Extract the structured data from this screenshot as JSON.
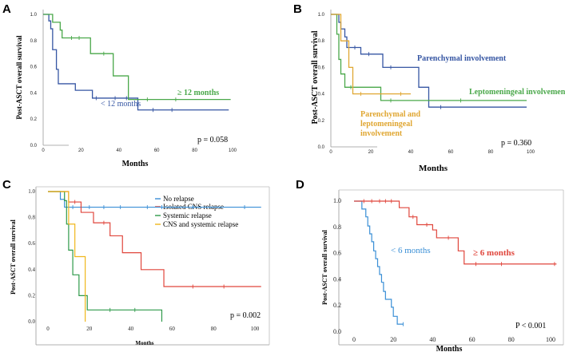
{
  "chart_data": [
    {
      "panel": "A",
      "type": "line",
      "title": "",
      "xlabel": "Months",
      "ylabel": "Post-ASCT overall survival",
      "xlim": [
        0,
        100
      ],
      "ylim": [
        0,
        1.0
      ],
      "xticks": [
        "0",
        "20",
        "40",
        "60",
        "80",
        "100"
      ],
      "yticks": [
        "0.0",
        "0.2",
        "0.4",
        "0.6",
        "0.8",
        "1.0"
      ],
      "pvalue": "p = 0.058",
      "series": [
        {
          "name": "< 12 months",
          "label": "< 12 months",
          "color": "#3656a3",
          "steps": [
            [
              0,
              1.0
            ],
            [
              3,
              0.95
            ],
            [
              4,
              0.89
            ],
            [
              5,
              0.73
            ],
            [
              7,
              0.58
            ],
            [
              8,
              0.47
            ],
            [
              17,
              0.42
            ],
            [
              26,
              0.36
            ],
            [
              50,
              0.27
            ],
            [
              98,
              0.27
            ]
          ],
          "censors": [
            [
              28,
              0.36
            ],
            [
              38,
              0.36
            ],
            [
              44,
              0.36
            ],
            [
              58,
              0.27
            ],
            [
              68,
              0.27
            ]
          ]
        },
        {
          "name": "≥ 12 months",
          "label": "≥ 12 months",
          "color": "#4aa84a",
          "steps": [
            [
              0,
              1.0
            ],
            [
              5,
              0.94
            ],
            [
              9,
              0.88
            ],
            [
              10,
              0.82
            ],
            [
              25,
              0.7
            ],
            [
              37,
              0.53
            ],
            [
              45,
              0.35
            ],
            [
              99,
              0.35
            ]
          ],
          "censors": [
            [
              15,
              0.82
            ],
            [
              19,
              0.82
            ],
            [
              32,
              0.7
            ],
            [
              55,
              0.35
            ],
            [
              70,
              0.35
            ]
          ]
        }
      ]
    },
    {
      "panel": "B",
      "type": "line",
      "title": "",
      "xlabel": "Months",
      "ylabel": "Post-ASCT overall survival",
      "xlim": [
        0,
        100
      ],
      "ylim": [
        0,
        1.0
      ],
      "xticks": [
        "0",
        "20",
        "40",
        "60",
        "80",
        "100"
      ],
      "yticks": [
        "0.0",
        "0.2",
        "0.4",
        "0.6",
        "0.8",
        "1.0"
      ],
      "pvalue": "p = 0.360",
      "series": [
        {
          "name": "Parenchymal involvement",
          "label": "Parenchymal involvement",
          "color": "#3656a3",
          "steps": [
            [
              0,
              1.0
            ],
            [
              4,
              0.94
            ],
            [
              5,
              0.89
            ],
            [
              7,
              0.83
            ],
            [
              8,
              0.75
            ],
            [
              15,
              0.7
            ],
            [
              26,
              0.6
            ],
            [
              44,
              0.45
            ],
            [
              49,
              0.3
            ],
            [
              98,
              0.3
            ]
          ],
          "censors": [
            [
              12,
              0.75
            ],
            [
              19,
              0.7
            ],
            [
              30,
              0.6
            ],
            [
              55,
              0.3
            ]
          ]
        },
        {
          "name": "Leptomeningeal involvement",
          "label": "Leptomeningeal involvement",
          "color": "#4aa84a",
          "steps": [
            [
              0,
              1.0
            ],
            [
              3,
              0.85
            ],
            [
              4,
              0.66
            ],
            [
              5,
              0.55
            ],
            [
              7,
              0.45
            ],
            [
              25,
              0.35
            ],
            [
              98,
              0.35
            ]
          ],
          "censors": [
            [
              10,
              0.45
            ],
            [
              30,
              0.35
            ],
            [
              65,
              0.35
            ]
          ]
        },
        {
          "name": "Parenchymal and leptomeningeal involvement",
          "label1": "Parenchymal and",
          "label2": "leptomeningeal",
          "label3": "involvement",
          "color": "#e0a733",
          "steps": [
            [
              0,
              1.0
            ],
            [
              5,
              0.8
            ],
            [
              9,
              0.6
            ],
            [
              11,
              0.4
            ],
            [
              40,
              0.4
            ]
          ],
          "censors": [
            [
              15,
              0.4
            ],
            [
              35,
              0.4
            ]
          ]
        }
      ]
    },
    {
      "panel": "C",
      "type": "line",
      "title": "",
      "xlabel": "Months",
      "ylabel": "Post-ASCT overall survival",
      "xlim": [
        0,
        100
      ],
      "ylim": [
        0,
        1.0
      ],
      "xticks": [
        "0",
        "20",
        "40",
        "60",
        "80",
        "100"
      ],
      "yticks": [
        "0.0",
        "0.2",
        "0.4",
        "0.6",
        "0.8",
        "1.0"
      ],
      "pvalue": "p = 0.002",
      "legend": [
        "No relapse",
        "Isolated CNS relapse",
        "Systemic relapse",
        "CNS and systemic relapse"
      ],
      "series": [
        {
          "name": "No relapse",
          "color": "#3a8fd6",
          "steps": [
            [
              0,
              1.0
            ],
            [
              6,
              0.94
            ],
            [
              8,
              0.88
            ],
            [
              103,
              0.88
            ]
          ],
          "censors": [
            [
              12,
              0.88
            ],
            [
              16,
              0.88
            ],
            [
              20,
              0.88
            ],
            [
              27,
              0.88
            ],
            [
              35,
              0.88
            ],
            [
              48,
              0.88
            ],
            [
              55,
              0.88
            ],
            [
              70,
              0.88
            ],
            [
              95,
              0.88
            ]
          ]
        },
        {
          "name": "Isolated CNS relapse",
          "color": "#e0463c",
          "steps": [
            [
              0,
              1.0
            ],
            [
              10,
              0.92
            ],
            [
              16,
              0.84
            ],
            [
              22,
              0.76
            ],
            [
              30,
              0.66
            ],
            [
              36,
              0.53
            ],
            [
              45,
              0.4
            ],
            [
              56,
              0.27
            ],
            [
              103,
              0.27
            ]
          ],
          "censors": [
            [
              13,
              0.92
            ],
            [
              27,
              0.76
            ],
            [
              70,
              0.27
            ],
            [
              85,
              0.27
            ]
          ]
        },
        {
          "name": "Systemic relapse",
          "color": "#2f9a4a",
          "steps": [
            [
              0,
              1.0
            ],
            [
              8,
              0.93
            ],
            [
              9,
              0.75
            ],
            [
              10,
              0.55
            ],
            [
              12,
              0.36
            ],
            [
              15,
              0.2
            ],
            [
              19,
              0.09
            ],
            [
              55,
              0.09
            ],
            [
              55,
              0.0
            ]
          ],
          "censors": [
            [
              30,
              0.09
            ],
            [
              42,
              0.09
            ]
          ]
        },
        {
          "name": "CNS and systemic relapse",
          "color": "#f0b71c",
          "steps": [
            [
              0,
              1.0
            ],
            [
              10,
              0.75
            ],
            [
              13,
              0.5
            ],
            [
              18,
              0.5
            ],
            [
              18,
              0.0
            ]
          ],
          "censors": []
        }
      ]
    },
    {
      "panel": "D",
      "type": "line",
      "title": "",
      "xlabel": "Months",
      "ylabel": "Post-ASCT overall survival",
      "xlim": [
        0,
        100
      ],
      "ylim": [
        0,
        1.0
      ],
      "xticks": [
        "0",
        "20",
        "40",
        "60",
        "80",
        "100"
      ],
      "yticks": [
        "0.0",
        "0.2",
        "0.4",
        "0.6",
        "0.8",
        "1.0"
      ],
      "pvalue": "P < 0.001",
      "series": [
        {
          "name": "< 6 months",
          "label": "< 6 months",
          "color": "#3a8fd6",
          "steps": [
            [
              0,
              1.0
            ],
            [
              4,
              0.94
            ],
            [
              6,
              0.88
            ],
            [
              7,
              0.81
            ],
            [
              8,
              0.75
            ],
            [
              9,
              0.69
            ],
            [
              10,
              0.62
            ],
            [
              11,
              0.56
            ],
            [
              12,
              0.5
            ],
            [
              13,
              0.44
            ],
            [
              14,
              0.38
            ],
            [
              15,
              0.31
            ],
            [
              16,
              0.25
            ],
            [
              19,
              0.19
            ],
            [
              20,
              0.12
            ],
            [
              22,
              0.06
            ],
            [
              25,
              0.06
            ]
          ],
          "censors": [
            [
              25,
              0.06
            ]
          ]
        },
        {
          "name": "≥ 6 months",
          "label": "≥ 6 months",
          "color": "#e0463c",
          "steps": [
            [
              0,
              1.0
            ],
            [
              23,
              0.95
            ],
            [
              28,
              0.88
            ],
            [
              32,
              0.82
            ],
            [
              40,
              0.78
            ],
            [
              42,
              0.72
            ],
            [
              53,
              0.62
            ],
            [
              56,
              0.52
            ],
            [
              103,
              0.52
            ]
          ],
          "censors": [
            [
              5,
              1.0
            ],
            [
              9,
              1.0
            ],
            [
              13,
              1.0
            ],
            [
              16,
              1.0
            ],
            [
              19,
              1.0
            ],
            [
              30,
              0.88
            ],
            [
              37,
              0.82
            ],
            [
              48,
              0.72
            ],
            [
              62,
              0.52
            ],
            [
              75,
              0.52
            ],
            [
              102,
              0.52
            ]
          ]
        }
      ]
    }
  ]
}
